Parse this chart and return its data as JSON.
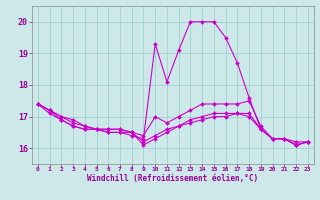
{
  "xlabel": "Windchill (Refroidissement éolien,°C)",
  "xlim": [
    -0.5,
    23.5
  ],
  "ylim": [
    15.5,
    20.5
  ],
  "yticks": [
    16,
    17,
    18,
    19,
    20
  ],
  "xticks": [
    0,
    1,
    2,
    3,
    4,
    5,
    6,
    7,
    8,
    9,
    10,
    11,
    12,
    13,
    14,
    15,
    16,
    17,
    18,
    19,
    20,
    21,
    22,
    23
  ],
  "bg_color": "#cce8e8",
  "line_color": "#cc00cc",
  "lines": [
    {
      "x": [
        0,
        1,
        2,
        3,
        4,
        5,
        6,
        7,
        8,
        9,
        10,
        11,
        12,
        13,
        14,
        15,
        16,
        17,
        18,
        19,
        20,
        21,
        22,
        23
      ],
      "y": [
        17.4,
        17.1,
        16.9,
        16.7,
        16.6,
        16.6,
        16.5,
        16.5,
        16.4,
        16.3,
        19.3,
        18.1,
        19.1,
        20.0,
        20.0,
        20.0,
        19.5,
        18.7,
        17.6,
        16.6,
        16.3,
        16.3,
        16.1,
        16.2
      ]
    },
    {
      "x": [
        0,
        1,
        2,
        3,
        4,
        5,
        6,
        7,
        8,
        9,
        10,
        11,
        12,
        13,
        14,
        15,
        16,
        17,
        18,
        19,
        20,
        21,
        22,
        23
      ],
      "y": [
        17.4,
        17.2,
        16.9,
        16.7,
        16.6,
        16.6,
        16.5,
        16.5,
        16.5,
        16.4,
        17.0,
        16.8,
        17.0,
        17.2,
        17.4,
        17.4,
        17.4,
        17.4,
        17.5,
        16.7,
        16.3,
        16.3,
        16.2,
        16.2
      ]
    },
    {
      "x": [
        0,
        1,
        2,
        3,
        4,
        5,
        6,
        7,
        8,
        9,
        10,
        11,
        12,
        13,
        14,
        15,
        16,
        17,
        18,
        19,
        20,
        21,
        22,
        23
      ],
      "y": [
        17.4,
        17.2,
        17.0,
        16.8,
        16.7,
        16.6,
        16.6,
        16.6,
        16.5,
        16.1,
        16.3,
        16.5,
        16.7,
        16.9,
        17.0,
        17.1,
        17.1,
        17.1,
        17.1,
        16.6,
        16.3,
        16.3,
        16.1,
        16.2
      ]
    },
    {
      "x": [
        0,
        1,
        2,
        3,
        4,
        5,
        6,
        7,
        8,
        9,
        10,
        11,
        12,
        13,
        14,
        15,
        16,
        17,
        18,
        19,
        20,
        21,
        22,
        23
      ],
      "y": [
        17.4,
        17.2,
        17.0,
        16.9,
        16.7,
        16.6,
        16.6,
        16.6,
        16.5,
        16.2,
        16.4,
        16.6,
        16.7,
        16.8,
        16.9,
        17.0,
        17.0,
        17.1,
        17.0,
        16.6,
        16.3,
        16.3,
        16.1,
        16.2
      ]
    }
  ]
}
